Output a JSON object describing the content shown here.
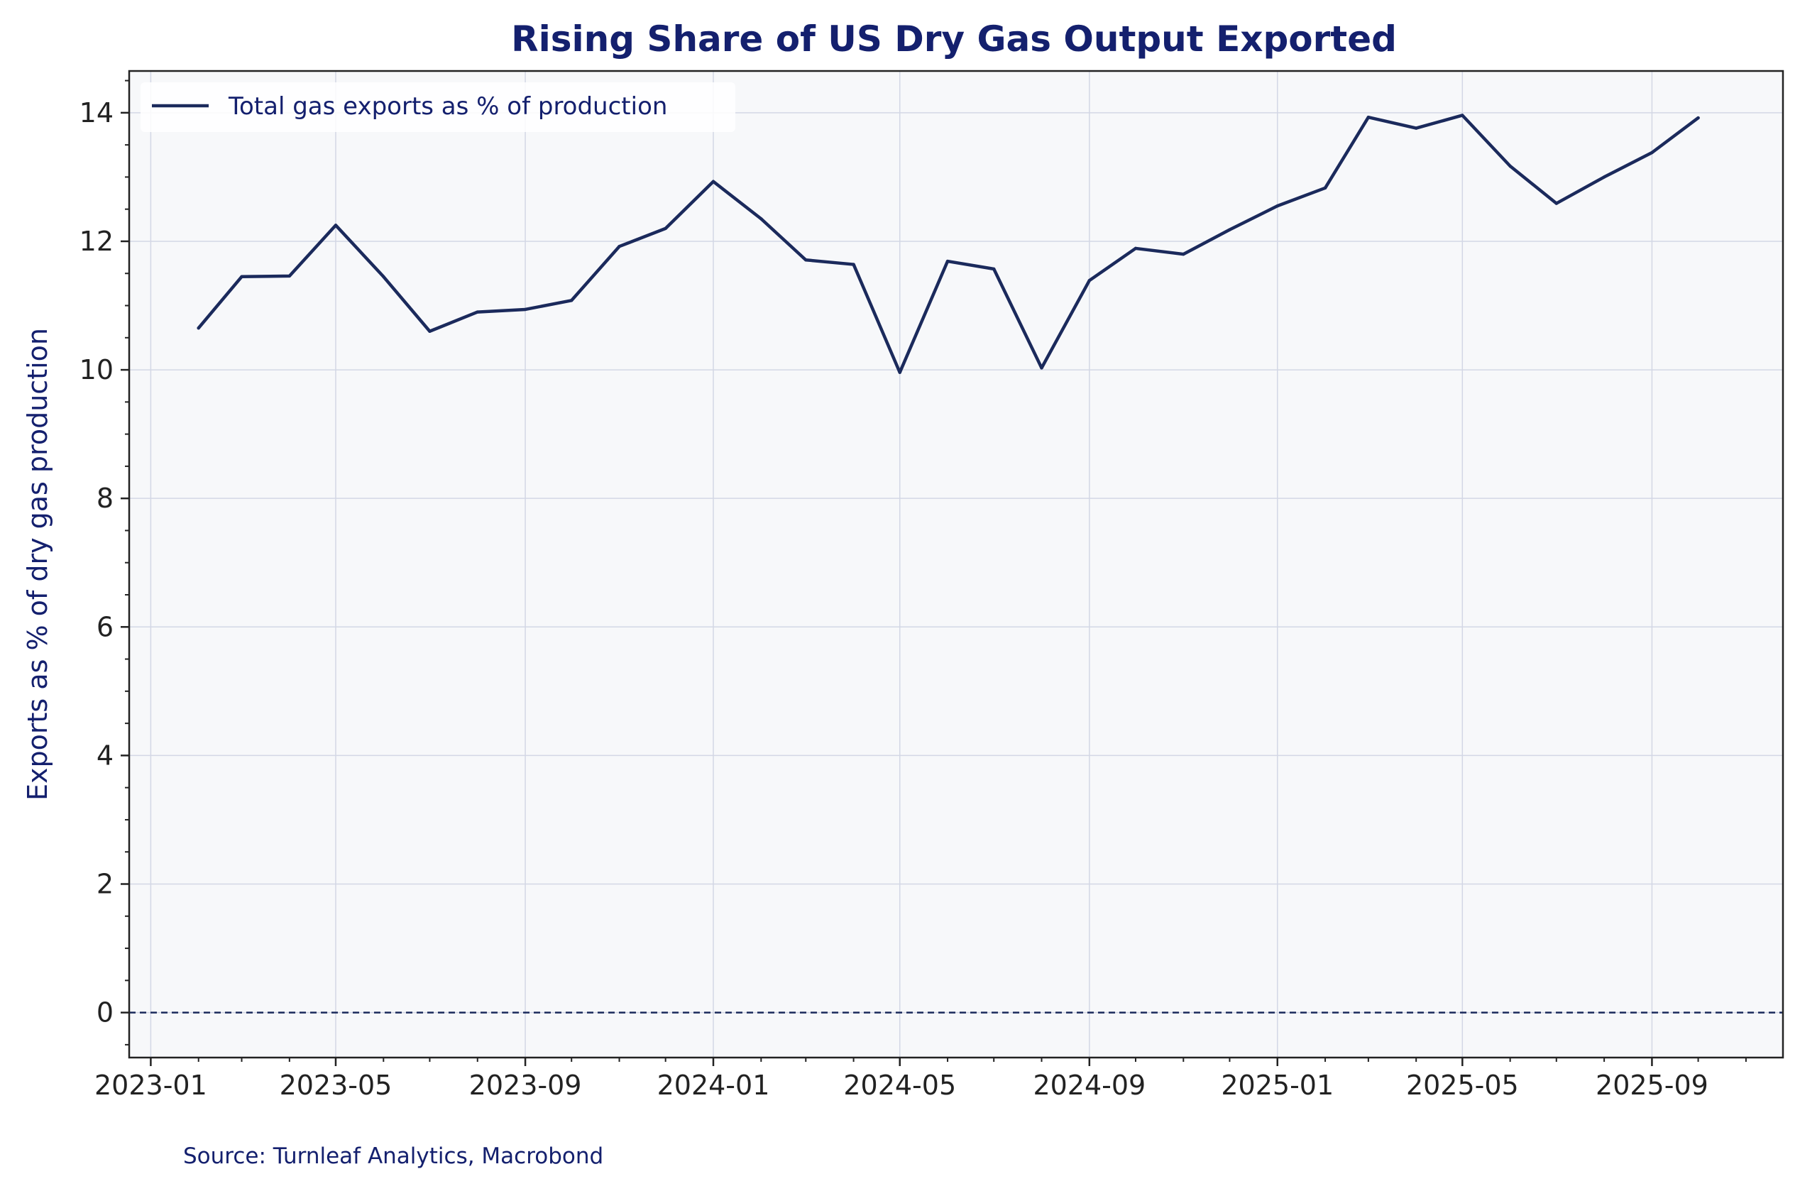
{
  "colors": {
    "title": "#14206e",
    "line": "#1b2a5c",
    "plot_bg": "#f7f8fa",
    "grid": "#d3d7e5",
    "axis": "#222222",
    "zero_line": "#1b2a5c"
  },
  "chart_data": {
    "type": "line",
    "title": "Rising Share of US Dry Gas Output Exported",
    "xlabel": "",
    "ylabel": "Exports as % of dry gas production",
    "source": "Source: Turnleaf Analytics, Macrobond",
    "ylim": [
      -0.7,
      14.65
    ],
    "xlim": [
      "2022-12-18",
      "2025-11-25"
    ],
    "yticks": [
      0,
      2,
      4,
      6,
      8,
      10,
      12,
      14
    ],
    "ytick_labels": [
      "0",
      "2",
      "4",
      "6",
      "8",
      "10",
      "12",
      "14"
    ],
    "xticks": [
      "2023-01-01",
      "2023-05-01",
      "2023-09-01",
      "2024-01-01",
      "2024-05-01",
      "2024-09-01",
      "2025-01-01",
      "2025-05-01",
      "2025-09-01"
    ],
    "xtick_labels": [
      "2023-01",
      "2023-05",
      "2023-09",
      "2024-01",
      "2024-05",
      "2024-09",
      "2025-01",
      "2025-05",
      "2025-09"
    ],
    "grid": true,
    "zero_line": "dashed",
    "legend": {
      "position": "top-left",
      "entries": [
        "Total gas exports as % of production"
      ]
    },
    "series": [
      {
        "name": "Total gas exports as % of production",
        "x": [
          "2023-02-01",
          "2023-03-01",
          "2023-04-01",
          "2023-05-01",
          "2023-06-01",
          "2023-07-01",
          "2023-08-01",
          "2023-09-01",
          "2023-10-01",
          "2023-11-01",
          "2023-12-01",
          "2024-01-01",
          "2024-02-01",
          "2024-03-01",
          "2024-04-01",
          "2024-05-01",
          "2024-06-01",
          "2024-07-01",
          "2024-08-01",
          "2024-09-01",
          "2024-10-01",
          "2024-11-01",
          "2024-12-01",
          "2025-01-01",
          "2025-02-01",
          "2025-03-01",
          "2025-04-01",
          "2025-05-01",
          "2025-06-01",
          "2025-07-01",
          "2025-08-01",
          "2025-09-01",
          "2025-10-01"
        ],
        "values": [
          10.65,
          11.45,
          11.46,
          12.25,
          11.45,
          10.6,
          10.9,
          10.94,
          11.08,
          11.92,
          12.2,
          12.93,
          12.35,
          11.71,
          11.64,
          9.96,
          11.69,
          11.57,
          10.03,
          11.39,
          11.89,
          11.8,
          12.18,
          12.55,
          12.83,
          13.93,
          13.76,
          13.96,
          13.17,
          12.59,
          13.0,
          13.38,
          13.92
        ]
      }
    ]
  }
}
